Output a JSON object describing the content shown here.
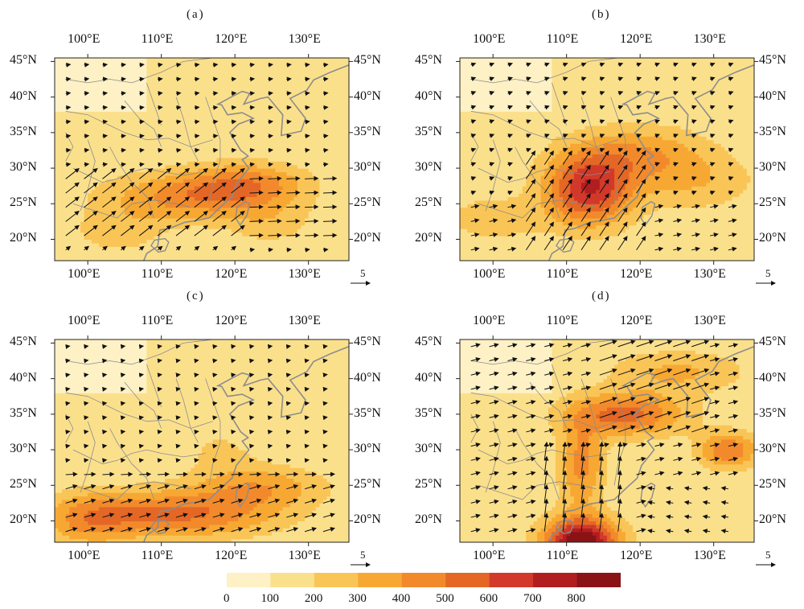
{
  "panels": [
    {
      "label": "(a)"
    },
    {
      "label": "(b)"
    },
    {
      "label": "(c)"
    },
    {
      "label": "(d)"
    }
  ],
  "lon_ticks": [
    "100°E",
    "110°E",
    "120°E",
    "130°E"
  ],
  "lat_ticks": [
    "45°N",
    "40°N",
    "35°N",
    "30°N",
    "25°N",
    "20°N"
  ],
  "reference_vector": "5",
  "colorbar": {
    "labels": [
      "0",
      "100",
      "200",
      "300",
      "400",
      "500",
      "600",
      "700",
      "800"
    ],
    "colors": [
      "#fdf1c5",
      "#fbe08c",
      "#f9c557",
      "#f7a833",
      "#f28a2c",
      "#e46726",
      "#d2392a",
      "#b11e20",
      "#8a1316"
    ]
  }
}
